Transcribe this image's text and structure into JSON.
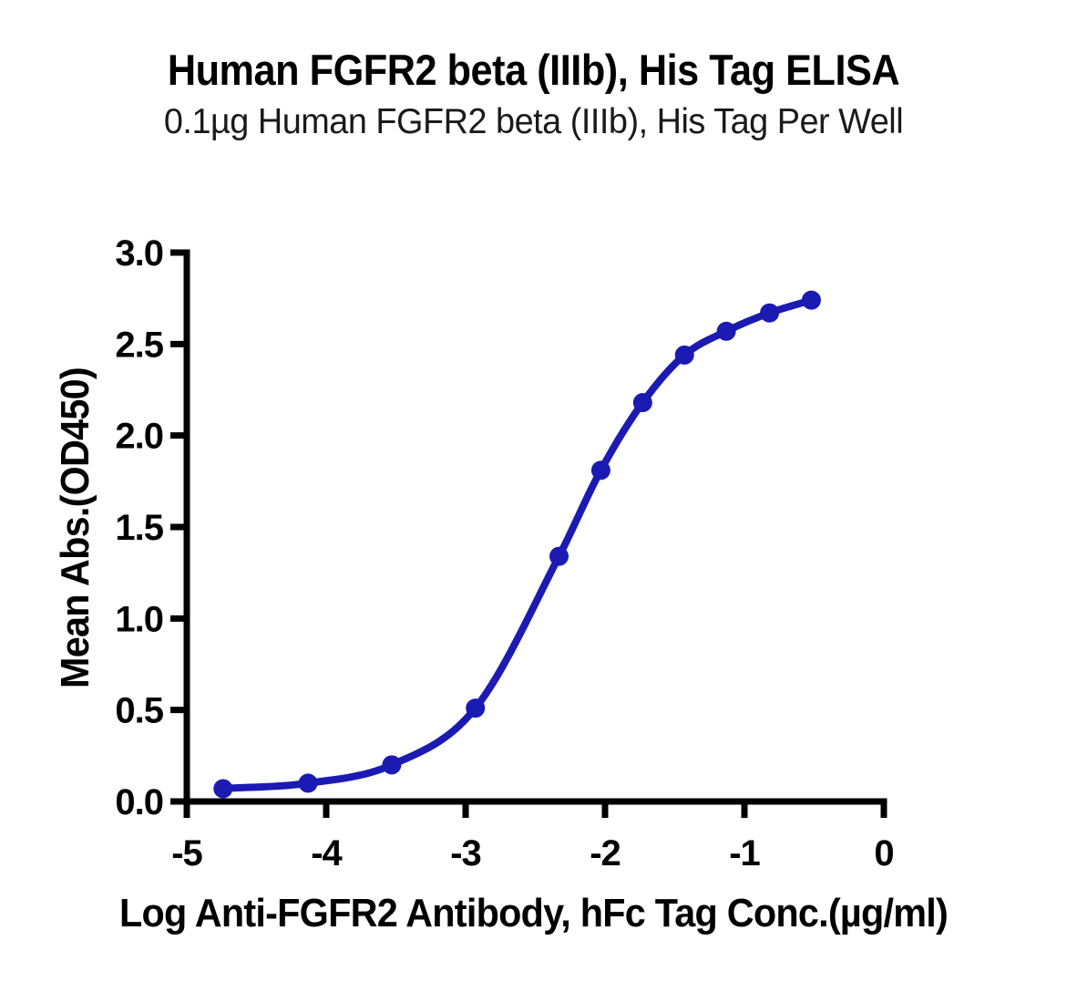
{
  "chart_data": {
    "type": "line",
    "title": "Human FGFR2 beta (IIIb), His Tag ELISA",
    "subtitle": "0.1µg Human FGFR2 beta (IIIb), His Tag Per Well",
    "xlabel": "Log Anti-FGFR2 Antibody, hFc Tag Conc.(µg/ml)",
    "ylabel": "Mean Abs.(OD450)",
    "xlim": [
      -5,
      0
    ],
    "ylim": [
      0,
      3
    ],
    "x_ticks": [
      "-5",
      "-4",
      "-3",
      "-2",
      "-1",
      "0"
    ],
    "y_ticks": [
      "0.0",
      "0.5",
      "1.0",
      "1.5",
      "2.0",
      "2.5",
      "3.0"
    ],
    "grid": false,
    "legend": "none",
    "series": [
      {
        "name": "Anti-FGFR2 Antibody, hFc Tag",
        "marker": "circle",
        "x": [
          -4.74,
          -4.13,
          -3.53,
          -2.93,
          -2.33,
          -2.03,
          -1.73,
          -1.43,
          -1.13,
          -0.82,
          -0.52
        ],
        "y": [
          0.07,
          0.1,
          0.2,
          0.51,
          1.34,
          1.81,
          2.18,
          2.44,
          2.57,
          2.67,
          2.74
        ]
      }
    ],
    "colors": {
      "curve": "#1B1BB3",
      "axis": "#000000",
      "text": "#000000",
      "background": "#FFFFFF"
    }
  }
}
